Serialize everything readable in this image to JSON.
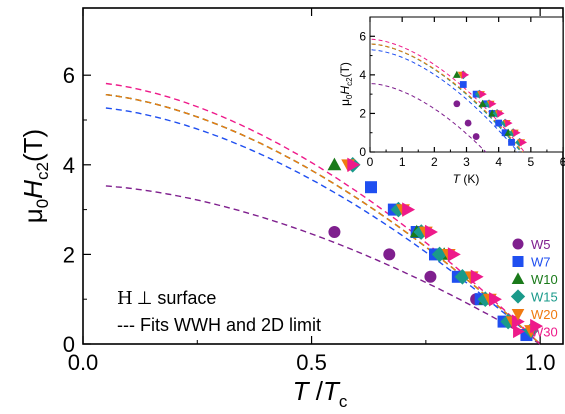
{
  "chart_data": [
    {
      "type": "scatter",
      "panel": "main",
      "xlim": [
        0.0,
        1.05
      ],
      "ylim": [
        0,
        7.5
      ],
      "xticks": [
        0.0,
        0.5,
        1.0
      ],
      "yticks": [
        0,
        2,
        4,
        6
      ],
      "xtick_labels": [
        "0.0",
        "0.5",
        "1.0"
      ],
      "ytick_labels": [
        "0",
        "2",
        "4",
        "6"
      ],
      "xlabel": {
        "main": "T",
        "slash": " /",
        "var": "T",
        "sub": "c"
      },
      "ylabel": {
        "mu": "μ",
        "sub0": "0",
        "var": "H",
        "sub": "c2",
        "unit": "(T)"
      },
      "grid": false,
      "legend_position": "right",
      "series": [
        {
          "name": "W5",
          "color": "#7f1f8e",
          "marker": "circle",
          "x": [
            0.55,
            0.67,
            0.76,
            0.86,
            0.94
          ],
          "y": [
            2.5,
            2.0,
            1.5,
            1.0,
            0.5
          ],
          "fit": {
            "H0": 3.55
          }
        },
        {
          "name": "W7",
          "color": "#1f4ff0",
          "marker": "square",
          "x": [
            0.63,
            0.68,
            0.73,
            0.77,
            0.82,
            0.87,
            0.92,
            0.97
          ],
          "y": [
            3.5,
            3.0,
            2.5,
            2.0,
            1.5,
            1.0,
            0.5,
            0.2
          ],
          "fit": {
            "H0": 5.3
          }
        },
        {
          "name": "W10",
          "color": "#1a7a1a",
          "marker": "triangle",
          "x": [
            0.55,
            0.73,
            0.79,
            0.88
          ],
          "y": [
            4.0,
            2.5,
            2.0,
            1.0
          ],
          "fit": {
            "H0": 5.6
          }
        },
        {
          "name": "W15",
          "color": "#1a9a8a",
          "marker": "diamond",
          "x": [
            0.59,
            0.69,
            0.74,
            0.78,
            0.83,
            0.88,
            0.93,
            0.98
          ],
          "y": [
            4.0,
            3.0,
            2.5,
            2.0,
            1.5,
            1.0,
            0.5,
            0.3
          ],
          "fit": {
            "H0": 5.6
          }
        },
        {
          "name": "W20",
          "color": "#f07a10",
          "marker": "triangle-down",
          "x": [
            0.58,
            0.7,
            0.75,
            0.8,
            0.85,
            0.89,
            0.94,
            0.98
          ],
          "y": [
            4.0,
            3.0,
            2.5,
            2.0,
            1.5,
            1.0,
            0.5,
            0.3
          ],
          "fit": {
            "H0": 5.6
          }
        },
        {
          "name": "W30",
          "color": "#ee1a8a",
          "marker": "triangle-right",
          "x": [
            0.59,
            0.71,
            0.76,
            0.81,
            0.86,
            0.9,
            0.95,
            0.99
          ],
          "y": [
            4.0,
            3.0,
            2.5,
            2.0,
            1.5,
            1.0,
            0.5,
            0.4
          ],
          "fit": {
            "H0": 5.85
          }
        }
      ],
      "annotations": [
        {
          "symbol": "H",
          "perp": "⊥",
          "text": " surface"
        },
        {
          "text": "--- Fits WWH and 2D limit"
        }
      ]
    },
    {
      "type": "scatter",
      "panel": "inset",
      "xlim": [
        0,
        6
      ],
      "ylim": [
        0,
        7
      ],
      "xticks": [
        0,
        1,
        2,
        3,
        4,
        5,
        6
      ],
      "yticks": [
        0,
        2,
        4,
        6
      ],
      "xtick_labels": [
        "0",
        "1",
        "2",
        "3",
        "4",
        "5",
        "6"
      ],
      "ytick_labels": [
        "0",
        "2",
        "4",
        "6"
      ],
      "xlabel": {
        "var": "T",
        "unit": " (K)"
      },
      "ylabel": {
        "mu": "μ",
        "sub0": "0",
        "var": "H",
        "sub": "c2",
        "unit": "(T)"
      },
      "grid": false,
      "series": [
        {
          "name": "W5",
          "color": "#7f1f8e",
          "marker": "circle",
          "Tc": 3.6,
          "H0": 3.55,
          "x": [
            2.7,
            3.05,
            3.3
          ],
          "y": [
            2.5,
            1.5,
            0.8
          ]
        },
        {
          "name": "W7",
          "color": "#1f4ff0",
          "marker": "square",
          "Tc": 4.6,
          "H0": 5.3,
          "x": [
            2.9,
            3.3,
            3.6,
            3.8,
            4.0,
            4.2,
            4.4
          ],
          "y": [
            3.5,
            3.0,
            2.5,
            2.0,
            1.5,
            1.0,
            0.5
          ]
        },
        {
          "name": "W10",
          "color": "#1a7a1a",
          "marker": "triangle",
          "Tc": 4.7,
          "H0": 5.6,
          "x": [
            2.7,
            3.5,
            3.8,
            4.3
          ],
          "y": [
            4.0,
            2.5,
            2.0,
            1.0
          ]
        },
        {
          "name": "W15",
          "color": "#1a9a8a",
          "marker": "diamond",
          "Tc": 4.7,
          "H0": 5.6,
          "x": [
            2.9,
            3.4,
            3.7,
            3.95,
            4.2,
            4.45,
            4.65
          ],
          "y": [
            4.0,
            3.0,
            2.5,
            2.0,
            1.5,
            1.0,
            0.5
          ]
        },
        {
          "name": "W20",
          "color": "#f07a10",
          "marker": "triangle-down",
          "Tc": 4.75,
          "H0": 5.6,
          "x": [
            2.85,
            3.45,
            3.75,
            4.0,
            4.25,
            4.5,
            4.7
          ],
          "y": [
            4.0,
            3.0,
            2.5,
            2.0,
            1.5,
            1.0,
            0.5
          ]
        },
        {
          "name": "W30",
          "color": "#ee1a8a",
          "marker": "triangle-right",
          "Tc": 4.8,
          "H0": 5.85,
          "x": [
            2.95,
            3.5,
            3.8,
            4.05,
            4.3,
            4.55,
            4.75
          ],
          "y": [
            4.0,
            3.0,
            2.5,
            2.0,
            1.5,
            1.0,
            0.5
          ]
        }
      ]
    }
  ]
}
